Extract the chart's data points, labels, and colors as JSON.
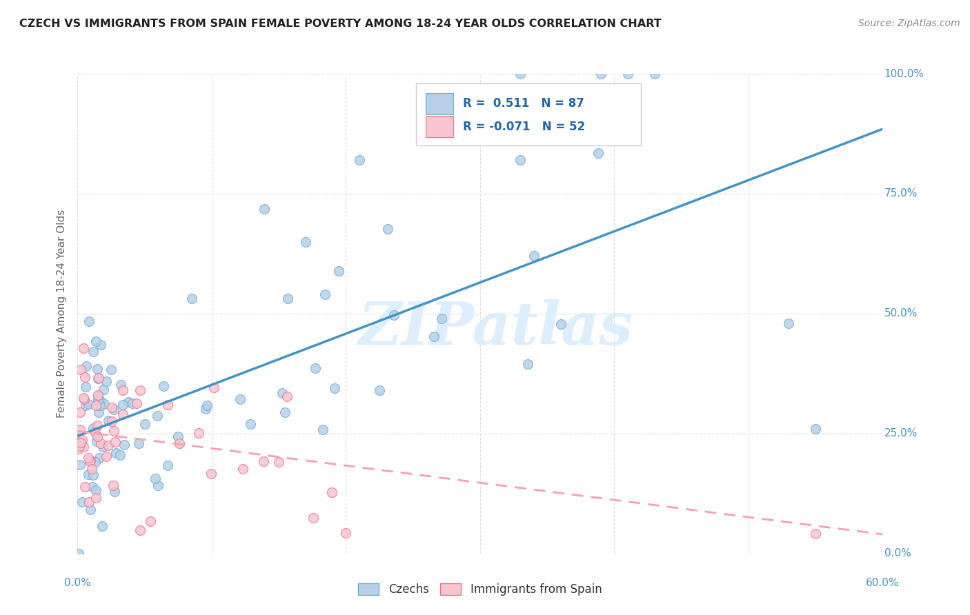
{
  "title": "CZECH VS IMMIGRANTS FROM SPAIN FEMALE POVERTY AMONG 18-24 YEAR OLDS CORRELATION CHART",
  "source": "Source: ZipAtlas.com",
  "ylabel_label": "Female Poverty Among 18-24 Year Olds",
  "legend_bottom": [
    "Czechs",
    "Immigrants from Spain"
  ],
  "legend_top": {
    "czech_R": "0.511",
    "czech_N": "87",
    "spain_R": "-0.071",
    "spain_N": "52"
  },
  "blue_fill": "#b8d0e8",
  "blue_edge": "#6aaed6",
  "pink_fill": "#f9c6d0",
  "pink_edge": "#f07090",
  "blue_line": "#4393c3",
  "pink_line": "#f4a0b0",
  "watermark_color": "#ddeeff",
  "background_color": "#ffffff",
  "grid_color": "#dddddd",
  "title_color": "#222222",
  "source_color": "#888888",
  "tick_color_right": "#4393c3",
  "tick_color_left": "#888888",
  "xlim": [
    0.0,
    0.6
  ],
  "ylim": [
    0.0,
    1.0
  ],
  "x_ticks": [
    0.0,
    0.1,
    0.2,
    0.3,
    0.4,
    0.5,
    0.6
  ],
  "y_ticks": [
    0.0,
    0.25,
    0.5,
    0.75,
    1.0
  ],
  "czech_line_x0": 0.0,
  "czech_line_y0": 0.245,
  "czech_line_x1": 0.6,
  "czech_line_y1": 0.885,
  "spain_line_x0": 0.0,
  "spain_line_y0": 0.255,
  "spain_line_x1": 0.6,
  "spain_line_y1": 0.04,
  "marker_size": 100
}
